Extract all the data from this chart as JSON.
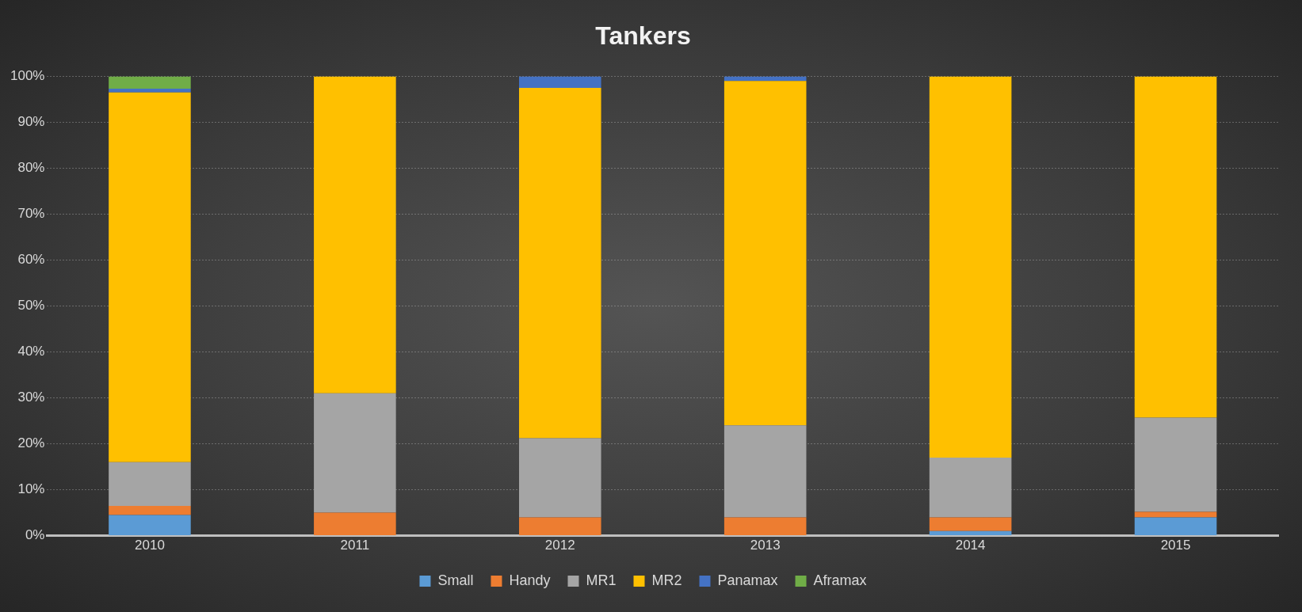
{
  "chart_data": {
    "type": "bar",
    "title": "Tankers",
    "stacked": true,
    "categories": [
      "2010",
      "2011",
      "2012",
      "2013",
      "2014",
      "2015"
    ],
    "series": [
      {
        "name": "Small",
        "color": "#5b9bd5",
        "values": [
          4.5,
          0,
          0,
          0,
          1,
          4
        ]
      },
      {
        "name": "Handy",
        "color": "#ed7d31",
        "values": [
          2,
          5,
          4,
          4,
          3,
          1.2
        ]
      },
      {
        "name": "MR1",
        "color": "#a5a5a5",
        "values": [
          9.5,
          26,
          17.2,
          20,
          13,
          20.5
        ]
      },
      {
        "name": "MR2",
        "color": "#ffc000",
        "values": [
          80.5,
          69,
          76.3,
          75,
          83,
          74.3
        ]
      },
      {
        "name": "Panamax",
        "color": "#4472c4",
        "values": [
          0.8,
          0,
          2.5,
          1,
          0,
          0
        ]
      },
      {
        "name": "Aframax",
        "color": "#70ad47",
        "values": [
          2.7,
          0,
          0,
          0,
          0,
          0
        ]
      }
    ],
    "ylim": [
      0,
      100
    ],
    "yticks": [
      {
        "value": 0,
        "label": "0%"
      },
      {
        "value": 10,
        "label": "10%"
      },
      {
        "value": 20,
        "label": "20%"
      },
      {
        "value": 30,
        "label": "30%"
      },
      {
        "value": 40,
        "label": "40%"
      },
      {
        "value": 50,
        "label": "50%"
      },
      {
        "value": 60,
        "label": "60%"
      },
      {
        "value": 70,
        "label": "70%"
      },
      {
        "value": 80,
        "label": "80%"
      },
      {
        "value": 90,
        "label": "90%"
      },
      {
        "value": 100,
        "label": "100%"
      }
    ],
    "grid": "y",
    "legend": "bottom"
  }
}
